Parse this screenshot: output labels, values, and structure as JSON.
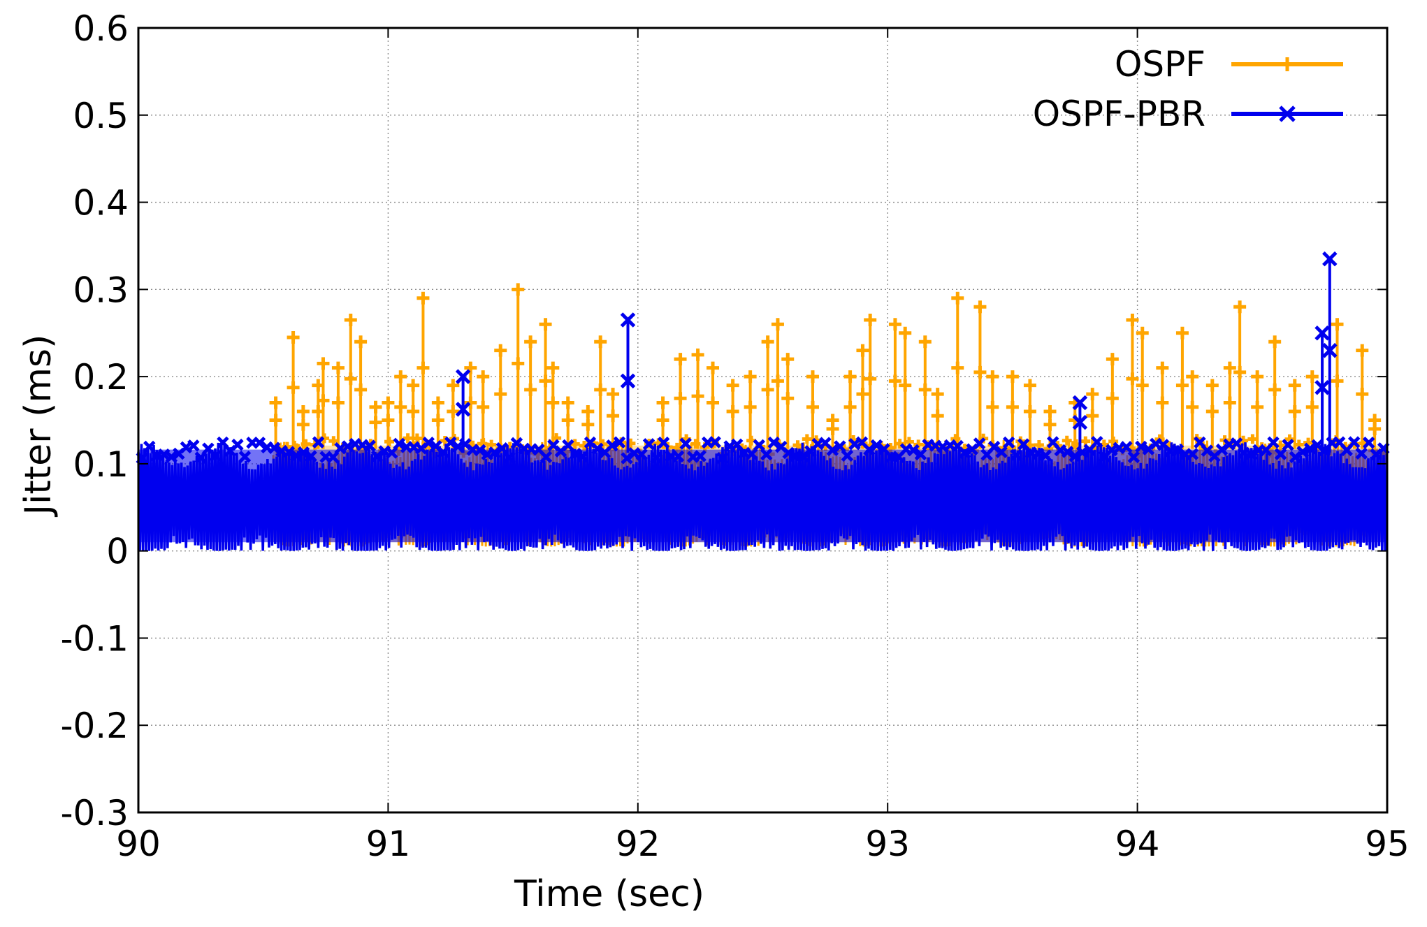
{
  "chart_data": {
    "type": "line",
    "title": "",
    "xlabel": "Time (sec)",
    "ylabel": "Jitter (ms)",
    "xlim": [
      90,
      95
    ],
    "ylim": [
      -0.3,
      0.6
    ],
    "xticks": [
      "90",
      "91",
      "92",
      "93",
      "94",
      "95"
    ],
    "yticks": [
      "-0.3",
      "-0.2",
      "-0.1",
      "0",
      "0.1",
      "0.2",
      "0.3",
      "0.4",
      "0.5",
      "0.6"
    ],
    "grid": true,
    "legend_position": "top-right",
    "series": [
      {
        "name": "OSPF",
        "color": "#ffa500",
        "marker": "plus",
        "envelope_start": 90.54,
        "envelope_end": 95.0,
        "band_low": 0.0,
        "band_high": 0.13,
        "spikes": [
          [
            90.55,
            0.17
          ],
          [
            90.62,
            0.245
          ],
          [
            90.66,
            0.16
          ],
          [
            90.72,
            0.19
          ],
          [
            90.74,
            0.215
          ],
          [
            90.8,
            0.21
          ],
          [
            90.85,
            0.265
          ],
          [
            90.89,
            0.24
          ],
          [
            90.95,
            0.165
          ],
          [
            91.0,
            0.17
          ],
          [
            91.05,
            0.2
          ],
          [
            91.1,
            0.19
          ],
          [
            91.14,
            0.29
          ],
          [
            91.2,
            0.17
          ],
          [
            91.26,
            0.19
          ],
          [
            91.33,
            0.21
          ],
          [
            91.38,
            0.2
          ],
          [
            91.45,
            0.23
          ],
          [
            91.52,
            0.3
          ],
          [
            91.57,
            0.24
          ],
          [
            91.63,
            0.26
          ],
          [
            91.66,
            0.21
          ],
          [
            91.72,
            0.17
          ],
          [
            91.8,
            0.16
          ],
          [
            91.85,
            0.24
          ],
          [
            91.9,
            0.18
          ],
          [
            92.1,
            0.17
          ],
          [
            92.17,
            0.22
          ],
          [
            92.24,
            0.225
          ],
          [
            92.3,
            0.21
          ],
          [
            92.38,
            0.19
          ],
          [
            92.45,
            0.2
          ],
          [
            92.52,
            0.24
          ],
          [
            92.56,
            0.26
          ],
          [
            92.6,
            0.22
          ],
          [
            92.7,
            0.2
          ],
          [
            92.78,
            0.15
          ],
          [
            92.85,
            0.2
          ],
          [
            92.9,
            0.23
          ],
          [
            92.93,
            0.265
          ],
          [
            93.03,
            0.26
          ],
          [
            93.07,
            0.25
          ],
          [
            93.15,
            0.24
          ],
          [
            93.2,
            0.18
          ],
          [
            93.28,
            0.29
          ],
          [
            93.37,
            0.28
          ],
          [
            93.42,
            0.2
          ],
          [
            93.5,
            0.2
          ],
          [
            93.57,
            0.19
          ],
          [
            93.65,
            0.16
          ],
          [
            93.75,
            0.17
          ],
          [
            93.82,
            0.18
          ],
          [
            93.9,
            0.22
          ],
          [
            93.98,
            0.265
          ],
          [
            94.02,
            0.25
          ],
          [
            94.1,
            0.21
          ],
          [
            94.18,
            0.25
          ],
          [
            94.22,
            0.2
          ],
          [
            94.3,
            0.19
          ],
          [
            94.37,
            0.21
          ],
          [
            94.41,
            0.28
          ],
          [
            94.48,
            0.2
          ],
          [
            94.55,
            0.24
          ],
          [
            94.63,
            0.19
          ],
          [
            94.7,
            0.2
          ],
          [
            94.8,
            0.26
          ],
          [
            94.9,
            0.23
          ],
          [
            94.95,
            0.15
          ]
        ]
      },
      {
        "name": "OSPF-PBR",
        "color": "#0000ee",
        "marker": "x",
        "envelope_start": 90.0,
        "envelope_end": 95.0,
        "band_low": 0.0,
        "band_high": 0.125,
        "spikes": [
          [
            91.3,
            0.2
          ],
          [
            91.96,
            0.265
          ],
          [
            93.77,
            0.17
          ],
          [
            94.74,
            0.25
          ],
          [
            94.77,
            0.335
          ]
        ]
      }
    ]
  }
}
